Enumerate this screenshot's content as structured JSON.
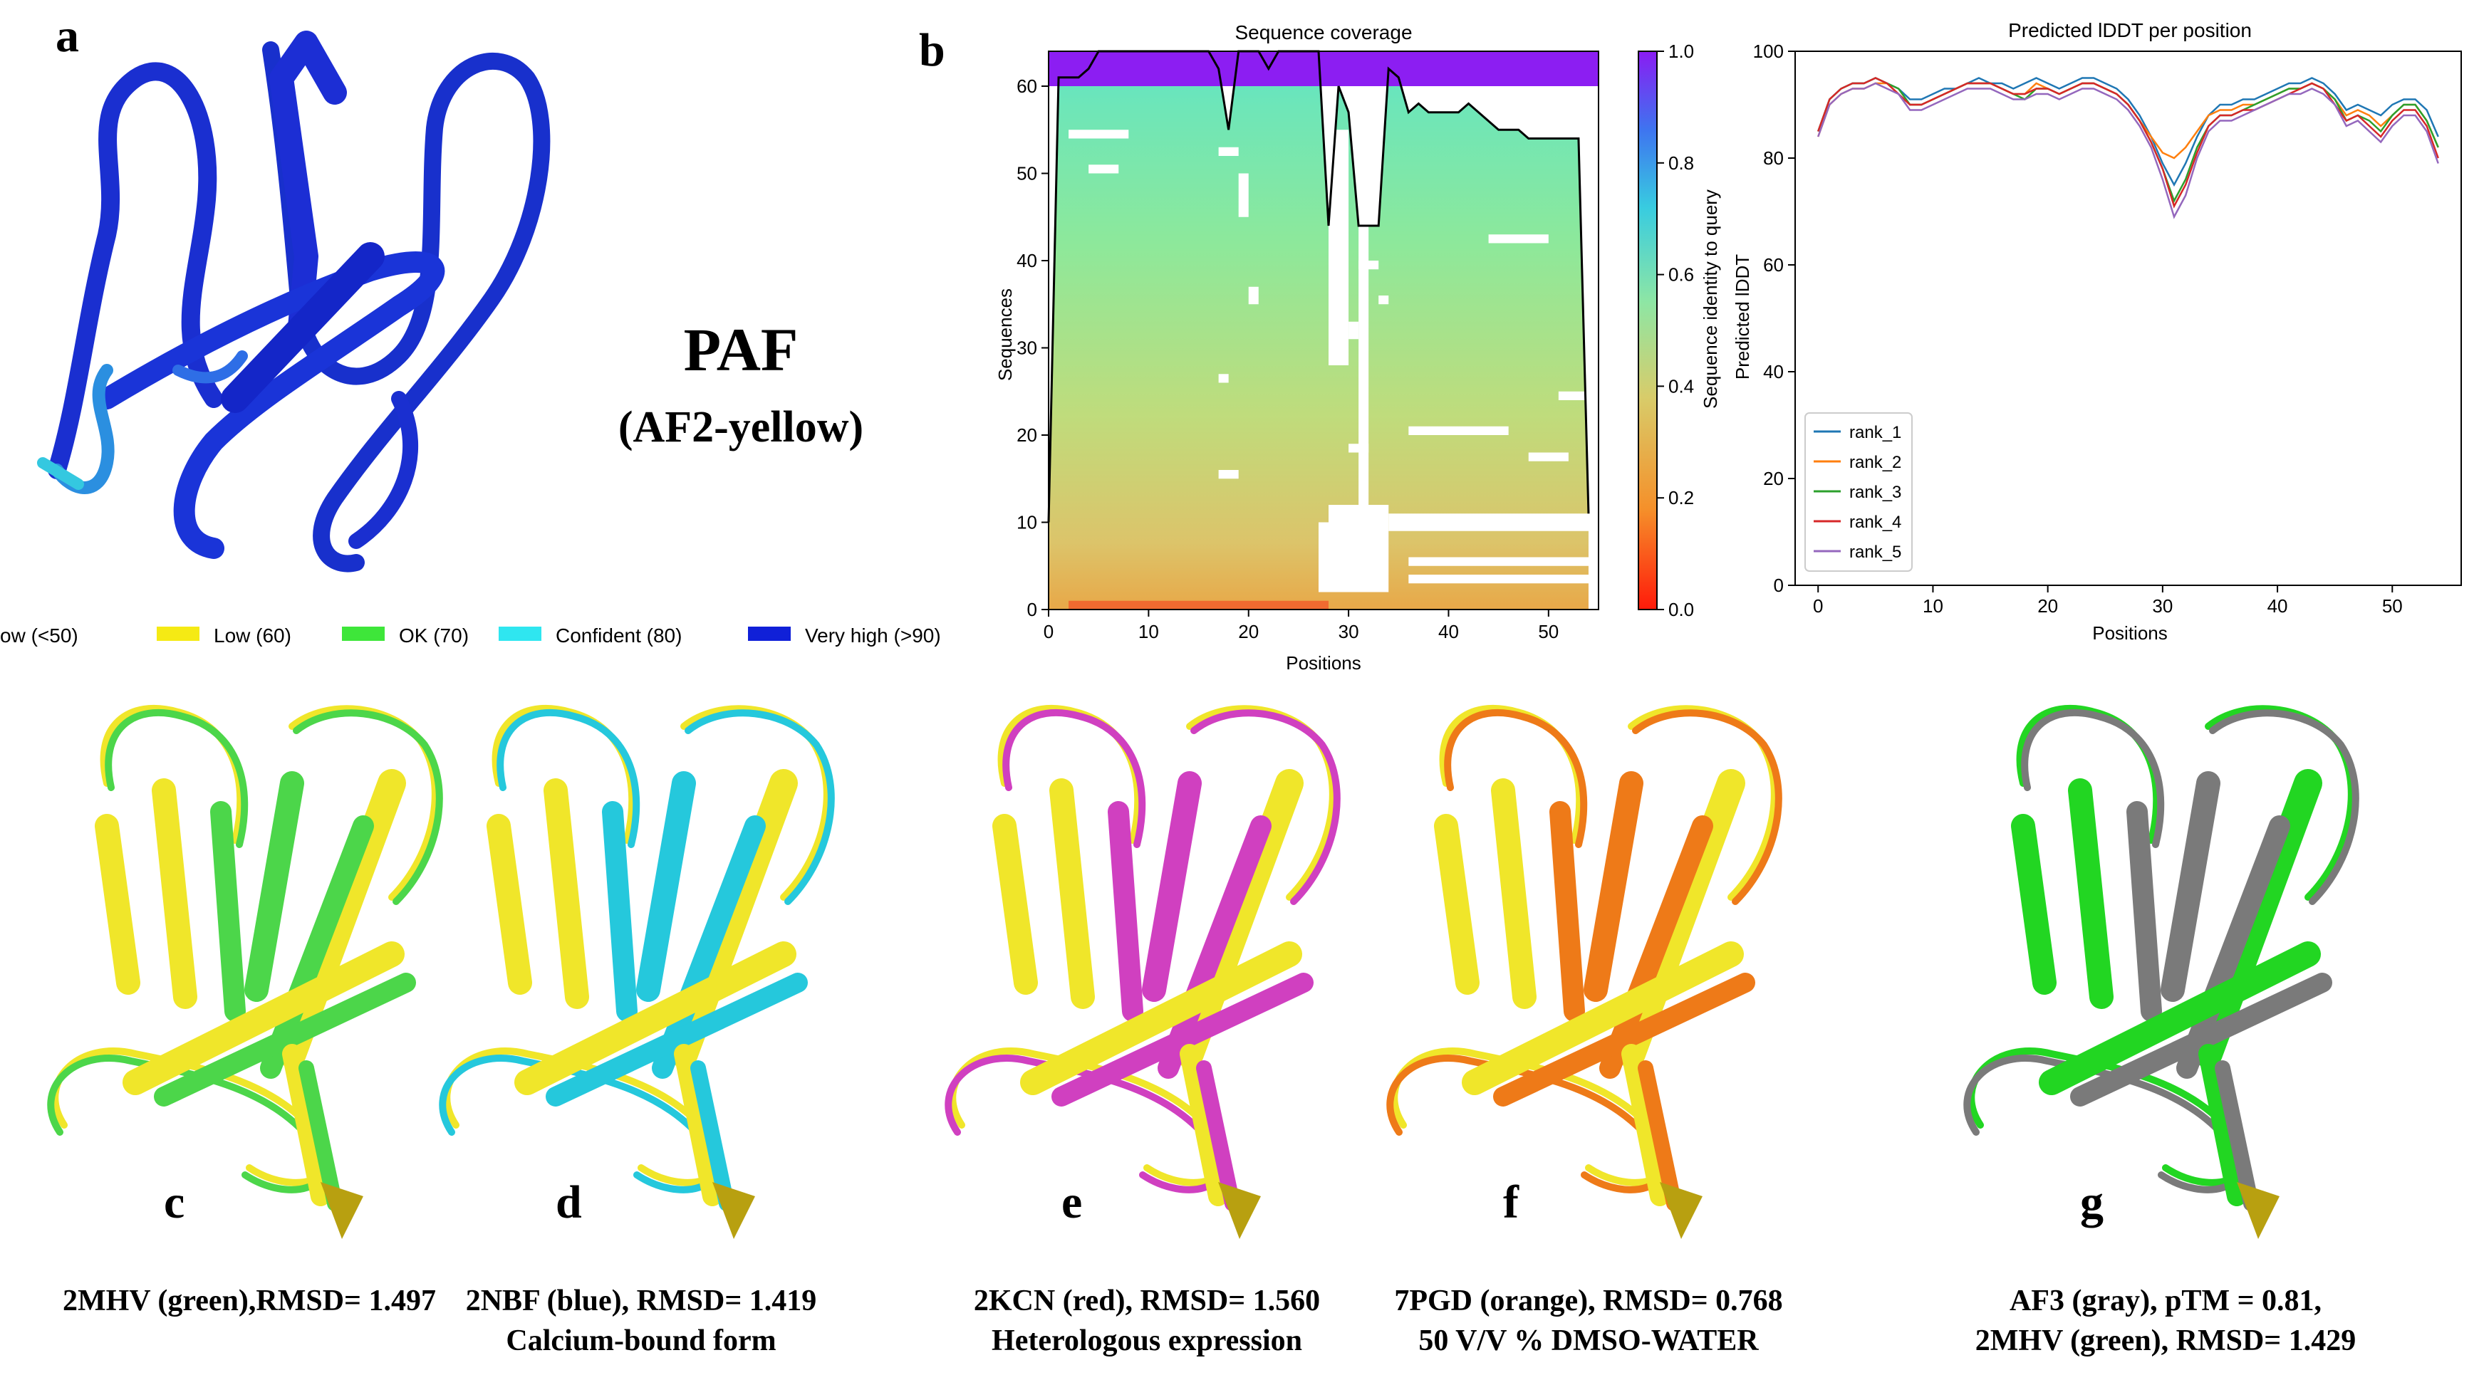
{
  "panel_letters": {
    "a": "a",
    "b": "b",
    "c": "c",
    "d": "d",
    "e": "e",
    "f": "f",
    "g": "g"
  },
  "panel_a": {
    "title": "PAF",
    "subtitle": "(AF2-yellow)",
    "ribbon_color": "#1a2fd0",
    "legend": [
      {
        "label": "ow (<50)",
        "color": "#f07a1a"
      },
      {
        "label": "Low (60)",
        "color": "#f5ea14"
      },
      {
        "label": "OK (70)",
        "color": "#3ee63a"
      },
      {
        "label": "Confident (80)",
        "color": "#2fe6f0"
      },
      {
        "label": "Very high (>90)",
        "color": "#1020d8"
      }
    ]
  },
  "structures": [
    {
      "letter": "c",
      "line1": "2MHV (green),RMSD= 1.497",
      "line2": "",
      "overlay_color": "#4cd64a",
      "base_color": "#f0e62a"
    },
    {
      "letter": "d",
      "line1": "2NBF (blue), RMSD= 1.419",
      "line2": "Calcium-bound form",
      "overlay_color": "#25c8dc",
      "base_color": "#f0e62a"
    },
    {
      "letter": "e",
      "line1": "2KCN (red), RMSD= 1.560",
      "line2": "Heterologous expression",
      "overlay_color": "#d040c0",
      "base_color": "#f0e62a"
    },
    {
      "letter": "f",
      "line1": "7PGD (orange), RMSD= 0.768",
      "line2": "50 V/V % DMSO-WATER",
      "overlay_color": "#ee7a18",
      "base_color": "#f0e62a"
    },
    {
      "letter": "g",
      "line1": "AF3 (gray),  pTM = 0.81,",
      "line2": "2MHV (green), RMSD= 1.429",
      "overlay_color": "#7a7a7a",
      "base_color": "#22d622"
    }
  ],
  "chart_data": [
    {
      "type": "heatmap",
      "title": "Sequence coverage",
      "xlabel": "Positions",
      "ylabel": "Sequences",
      "xlim": [
        0,
        55
      ],
      "ylim": [
        0,
        64
      ],
      "xticks": [
        0,
        10,
        20,
        30,
        40,
        50
      ],
      "yticks": [
        0,
        10,
        20,
        30,
        40,
        50,
        60
      ],
      "colorbar": {
        "label": "Sequence identity to query",
        "min": 0.0,
        "max": 1.0,
        "ticks": [
          "0.0",
          "0.2",
          "0.4",
          "0.6",
          "0.8",
          "1.0"
        ],
        "colors": [
          "#ff1a0a",
          "#f0a040",
          "#d8d070",
          "#7ee8a0",
          "#3ac8e0",
          "#4070f0",
          "#8020f0"
        ]
      },
      "coverage_line": {
        "x": [
          0,
          1,
          2,
          3,
          4,
          5,
          6,
          7,
          8,
          9,
          10,
          11,
          12,
          13,
          14,
          15,
          16,
          17,
          18,
          19,
          20,
          21,
          22,
          23,
          24,
          25,
          26,
          27,
          28,
          29,
          30,
          31,
          32,
          33,
          34,
          35,
          36,
          37,
          38,
          39,
          40,
          41,
          42,
          43,
          44,
          45,
          46,
          47,
          48,
          49,
          50,
          51,
          52,
          53,
          54
        ],
        "y": [
          10,
          61,
          61,
          61,
          62,
          64,
          64,
          64,
          64,
          64,
          64,
          64,
          64,
          64,
          64,
          64,
          64,
          62,
          55,
          64,
          64,
          64,
          62,
          64,
          64,
          64,
          64,
          64,
          44,
          60,
          57,
          44,
          44,
          44,
          62,
          61,
          57,
          58,
          57,
          57,
          57,
          57,
          58,
          57,
          56,
          55,
          55,
          55,
          54,
          54,
          54,
          54,
          54,
          54,
          11
        ]
      }
    },
    {
      "type": "line",
      "title": "Predicted lDDT per position",
      "xlabel": "Positions",
      "ylabel": "Predicted lDDT",
      "xlim": [
        -2,
        56
      ],
      "ylim": [
        0,
        100
      ],
      "xticks": [
        0,
        10,
        20,
        30,
        40,
        50
      ],
      "yticks": [
        0,
        20,
        40,
        60,
        80,
        100
      ],
      "legend_position": "lower-left",
      "x": [
        0,
        1,
        2,
        3,
        4,
        5,
        6,
        7,
        8,
        9,
        10,
        11,
        12,
        13,
        14,
        15,
        16,
        17,
        18,
        19,
        20,
        21,
        22,
        23,
        24,
        25,
        26,
        27,
        28,
        29,
        30,
        31,
        32,
        33,
        34,
        35,
        36,
        37,
        38,
        39,
        40,
        41,
        42,
        43,
        44,
        45,
        46,
        47,
        48,
        49,
        50,
        51,
        52,
        53,
        54
      ],
      "series": [
        {
          "name": "rank_1",
          "color": "#1f77b4",
          "values": [
            85,
            91,
            93,
            94,
            94,
            95,
            94,
            93,
            91,
            91,
            92,
            93,
            93,
            94,
            95,
            94,
            94,
            93,
            94,
            95,
            94,
            93,
            94,
            95,
            95,
            94,
            93,
            91,
            88,
            84,
            79,
            75,
            79,
            84,
            88,
            90,
            90,
            91,
            91,
            92,
            93,
            94,
            94,
            95,
            94,
            92,
            89,
            90,
            89,
            88,
            90,
            91,
            91,
            89,
            84
          ]
        },
        {
          "name": "rank_2",
          "color": "#ff7f0e",
          "values": [
            84,
            90,
            92,
            93,
            93,
            94,
            94,
            92,
            90,
            90,
            91,
            92,
            93,
            94,
            94,
            94,
            93,
            92,
            92,
            94,
            93,
            92,
            93,
            94,
            94,
            93,
            92,
            90,
            87,
            84,
            81,
            80,
            82,
            85,
            88,
            89,
            89,
            90,
            90,
            91,
            92,
            93,
            93,
            94,
            93,
            91,
            88,
            89,
            88,
            86,
            88,
            90,
            90,
            87,
            82
          ]
        },
        {
          "name": "rank_3",
          "color": "#2ca02c",
          "values": [
            85,
            91,
            93,
            94,
            94,
            95,
            94,
            93,
            90,
            90,
            91,
            92,
            93,
            94,
            94,
            94,
            93,
            92,
            91,
            93,
            93,
            92,
            93,
            94,
            94,
            93,
            92,
            90,
            87,
            83,
            78,
            72,
            76,
            82,
            86,
            88,
            88,
            89,
            90,
            91,
            92,
            93,
            93,
            94,
            93,
            91,
            87,
            88,
            87,
            85,
            88,
            90,
            90,
            87,
            82
          ]
        },
        {
          "name": "rank_4",
          "color": "#d62728",
          "values": [
            85,
            91,
            93,
            94,
            94,
            95,
            94,
            92,
            90,
            90,
            91,
            92,
            93,
            94,
            94,
            94,
            93,
            92,
            92,
            93,
            93,
            92,
            93,
            94,
            94,
            93,
            92,
            90,
            87,
            83,
            78,
            71,
            75,
            81,
            86,
            88,
            88,
            89,
            89,
            90,
            91,
            92,
            93,
            94,
            93,
            90,
            87,
            88,
            86,
            84,
            87,
            89,
            89,
            86,
            80
          ]
        },
        {
          "name": "rank_5",
          "color": "#9467bd",
          "values": [
            84,
            90,
            92,
            93,
            93,
            94,
            93,
            92,
            89,
            89,
            90,
            91,
            92,
            93,
            93,
            93,
            92,
            91,
            91,
            92,
            92,
            91,
            92,
            93,
            93,
            92,
            91,
            89,
            86,
            82,
            76,
            69,
            73,
            80,
            85,
            87,
            87,
            88,
            89,
            90,
            91,
            92,
            92,
            93,
            92,
            90,
            86,
            87,
            85,
            83,
            86,
            88,
            88,
            85,
            79
          ]
        }
      ]
    }
  ]
}
